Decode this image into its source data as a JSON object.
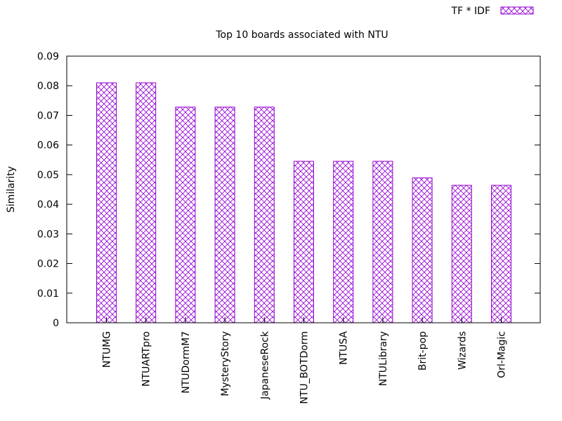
{
  "colors": {
    "bar_stroke": "#9400D3",
    "axis": "#000000",
    "background": "#ffffff"
  },
  "chart_data": {
    "type": "bar",
    "title": "Top 10 boards associated with NTU",
    "xlabel": "",
    "ylabel": "Similarity",
    "ylim": [
      0,
      0.09
    ],
    "yticks": [
      "0",
      "0.01",
      "0.02",
      "0.03",
      "0.04",
      "0.05",
      "0.06",
      "0.07",
      "0.08",
      "0.09"
    ],
    "legend": {
      "position": "top-right",
      "label": "TF * IDF"
    },
    "grid": false,
    "bar_pattern": "crosshatch",
    "categories": [
      "NTUMG",
      "NTUARTpro",
      "NTUDormM7",
      "MysteryStory",
      "JapaneseRock",
      "NTU_BOTDorm",
      "NTUSA",
      "NTULibrary",
      "Brit-pop",
      "Wizards",
      "Orl-Magic"
    ],
    "series": [
      {
        "name": "TF * IDF",
        "values": [
          0.081,
          0.081,
          0.0728,
          0.0728,
          0.0728,
          0.0545,
          0.0545,
          0.0545,
          0.0489,
          0.0464,
          0.0464
        ]
      }
    ]
  }
}
